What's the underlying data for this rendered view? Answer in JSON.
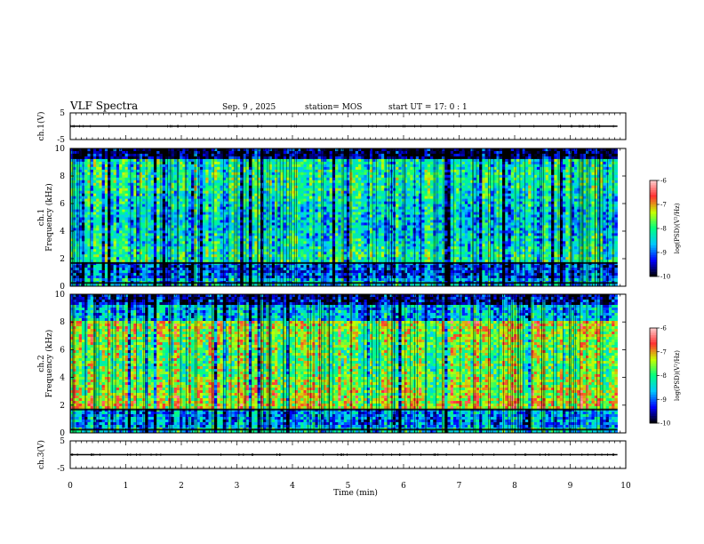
{
  "header": {
    "title": "VLF Spectra",
    "date": "Sep. 9  , 2025",
    "station": "station= MOS",
    "start_ut": "start  UT  =   17: 0  : 1"
  },
  "chart_data": [
    {
      "type": "line",
      "panel": "ch1-voltage",
      "ylabel": "ch.1(V)",
      "ylim": [
        -5,
        5
      ],
      "yticks": [
        "5",
        "-5"
      ],
      "x": [
        0,
        9.85
      ],
      "y": [
        0,
        0
      ]
    },
    {
      "type": "heatmap",
      "panel": "ch1-spectrogram",
      "ylabel": "ch.1\nFrequency (kHz)",
      "xlim": [
        0,
        10
      ],
      "data_xmax": 9.85,
      "ylim": [
        0,
        10
      ],
      "yticks": [
        "0",
        "2",
        "4",
        "6",
        "8",
        "10"
      ],
      "colorbar": {
        "label": "log(PSD)(V²/Hz)",
        "range": [
          -10,
          -6
        ],
        "ticks": [
          "-6",
          "-7",
          "-8",
          "-9",
          "-10"
        ]
      }
    },
    {
      "type": "heatmap",
      "panel": "ch2-spectrogram",
      "ylabel": "ch.2\nFrequency (kHz)",
      "xlim": [
        0,
        10
      ],
      "data_xmax": 9.85,
      "ylim": [
        0,
        10
      ],
      "yticks": [
        "0",
        "2",
        "4",
        "6",
        "8",
        "10"
      ],
      "colorbar": {
        "label": "log(PSD)(V²/Hz)",
        "range": [
          -10,
          -6
        ],
        "ticks": [
          "-6",
          "-7",
          "-8",
          "-9",
          "-10"
        ]
      }
    },
    {
      "type": "line",
      "panel": "ch3-voltage",
      "ylabel": "ch.3(V)",
      "ylim": [
        -5,
        5
      ],
      "yticks": [
        "5",
        "-5"
      ],
      "x": [
        0,
        9.85
      ],
      "y": [
        0,
        0
      ]
    }
  ],
  "xaxis": {
    "label": "Time  (min)",
    "ticks": [
      "0",
      "1",
      "2",
      "3",
      "4",
      "5",
      "6",
      "7",
      "8",
      "9",
      "10"
    ]
  },
  "colors": {
    "background": "#ffffff",
    "axis": "#000000",
    "colormap": [
      "#000000",
      "#0000ff",
      "#00c8ff",
      "#00ff80",
      "#c8ff00",
      "#ff3030",
      "#ffd0d0"
    ]
  }
}
